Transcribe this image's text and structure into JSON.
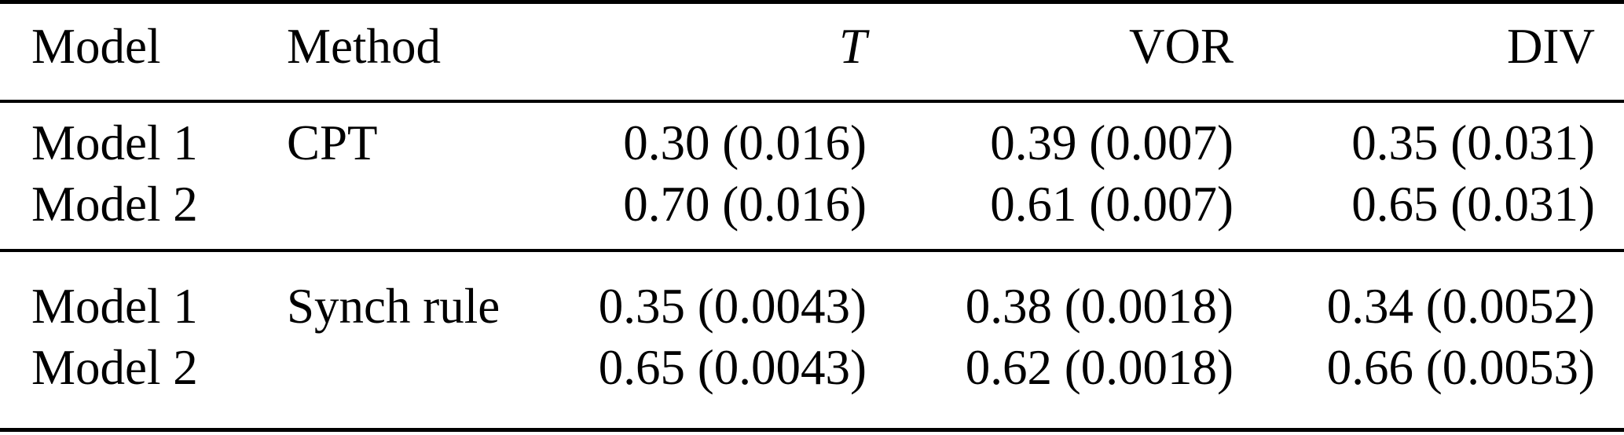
{
  "table": {
    "header": {
      "model": "Model",
      "method": "Method",
      "t": "T",
      "vor": "VOR",
      "div": "DIV"
    },
    "rows": [
      {
        "model": "Model 1",
        "method": "CPT",
        "t": "0.30 (0.016)",
        "vor": "0.39 (0.007)",
        "div": "0.35 (0.031)"
      },
      {
        "model": "Model 2",
        "method": "",
        "t": "0.70 (0.016)",
        "vor": "0.61 (0.007)",
        "div": "0.65 (0.031)"
      },
      {
        "model": "Model 1",
        "method": "Synch rule",
        "t": "0.35 (0.0043)",
        "vor": "0.38 (0.0018)",
        "div": "0.34 (0.0052)"
      },
      {
        "model": "Model 2",
        "method": "",
        "t": "0.65 (0.0043)",
        "vor": "0.62 (0.0018)",
        "div": "0.66 (0.0053)"
      }
    ]
  },
  "colors": {
    "text": "#000000",
    "background": "#ffffff",
    "rule": "#000000"
  }
}
